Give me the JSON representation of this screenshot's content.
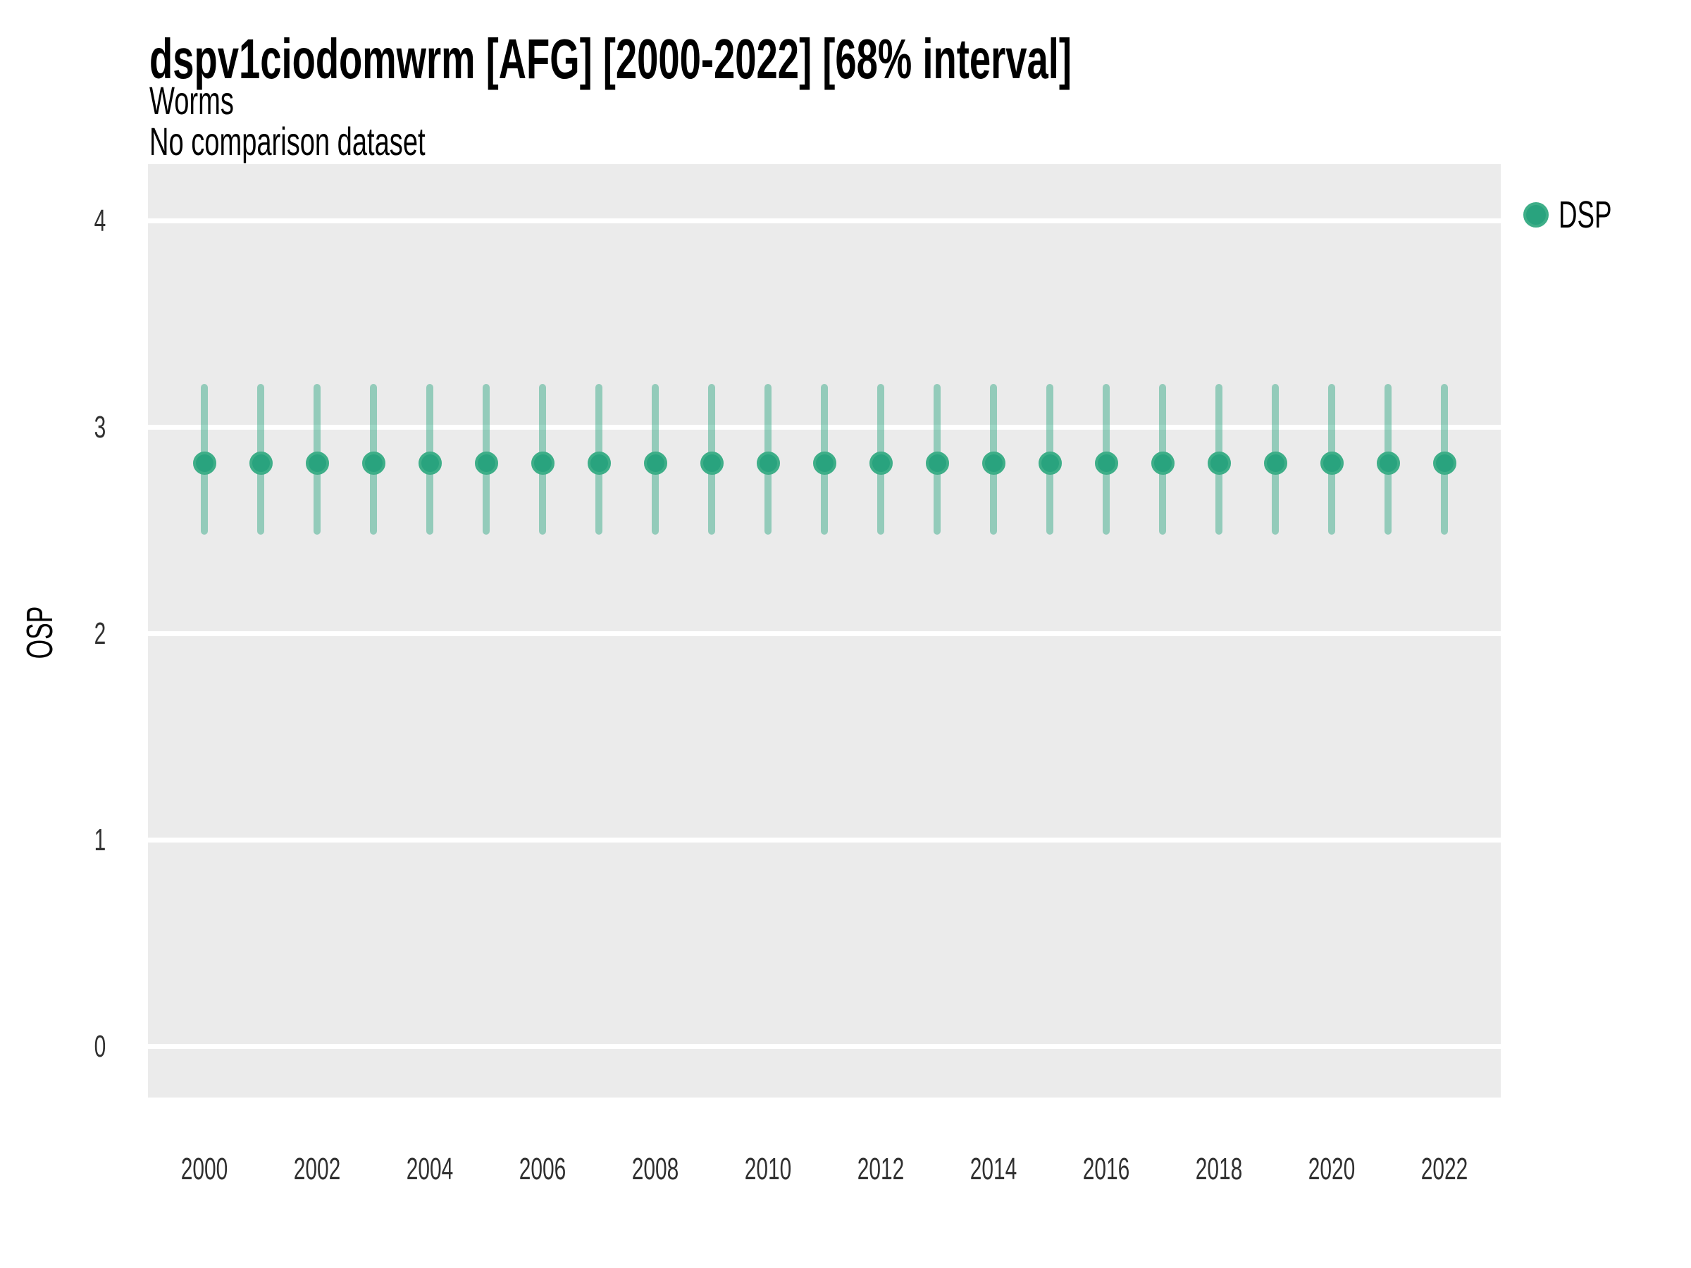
{
  "header": {
    "title": "dspv1ciodomwrm [AFG] [2000-2022] [68% interval]",
    "subtitle": "Worms",
    "comparison_note": "No comparison dataset"
  },
  "axes": {
    "y_label": "OSP",
    "y_ticks": [
      0,
      1,
      2,
      3,
      4
    ],
    "x_tick_labels": [
      "2000",
      "2002",
      "2004",
      "2006",
      "2008",
      "2010",
      "2012",
      "2014",
      "2016",
      "2018",
      "2020",
      "2022"
    ]
  },
  "legend": {
    "position": "right",
    "items": [
      {
        "label": "DSP",
        "color": "#29A37E",
        "ring_color": "#3EAE88",
        "marker": "circle"
      }
    ]
  },
  "chart_data": {
    "type": "scatter",
    "title": "dspv1ciodomwrm [AFG] [2000-2022] [68% interval]",
    "subtitle": "Worms",
    "note": "No comparison dataset",
    "xlabel": "",
    "ylabel": "OSP",
    "xlim": [
      1998.9,
      2023.1
    ],
    "ylim": [
      -0.25,
      4.28
    ],
    "grid": "major horizontal white gridlines on grey panel",
    "legend_position": "right",
    "interval_level": "68%",
    "x": [
      2000,
      2001,
      2002,
      2003,
      2004,
      2005,
      2006,
      2007,
      2008,
      2009,
      2010,
      2011,
      2012,
      2013,
      2014,
      2015,
      2016,
      2017,
      2018,
      2019,
      2020,
      2021,
      2022
    ],
    "series": [
      {
        "name": "DSP",
        "values": [
          2.83,
          2.83,
          2.83,
          2.83,
          2.83,
          2.83,
          2.83,
          2.83,
          2.83,
          2.83,
          2.83,
          2.83,
          2.83,
          2.83,
          2.83,
          2.83,
          2.83,
          2.83,
          2.83,
          2.83,
          2.83,
          2.83,
          2.83
        ],
        "interval_low": [
          2.48,
          2.48,
          2.48,
          2.48,
          2.48,
          2.48,
          2.48,
          2.48,
          2.48,
          2.48,
          2.48,
          2.48,
          2.48,
          2.48,
          2.48,
          2.48,
          2.48,
          2.48,
          2.48,
          2.48,
          2.48,
          2.48,
          2.48
        ],
        "interval_high": [
          3.21,
          3.21,
          3.21,
          3.21,
          3.21,
          3.21,
          3.21,
          3.21,
          3.21,
          3.21,
          3.21,
          3.21,
          3.21,
          3.21,
          3.21,
          3.21,
          3.21,
          3.21,
          3.21,
          3.21,
          3.21,
          3.21,
          3.21
        ]
      }
    ],
    "colors": {
      "point": "#29A37E",
      "point_ring": "#3EAE88",
      "errorbar": "rgba(41,163,126,0.45)",
      "panel_background": "#EBEBEB",
      "gridline": "#FFFFFF"
    }
  }
}
